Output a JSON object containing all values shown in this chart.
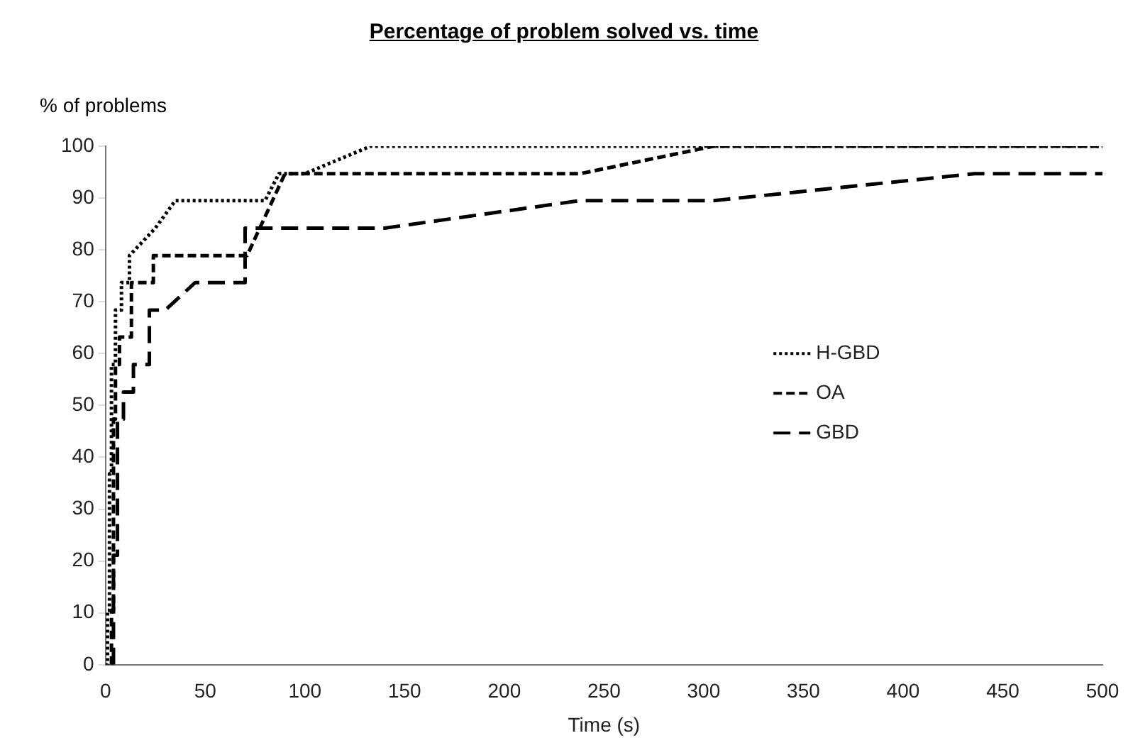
{
  "chart_data": {
    "type": "line",
    "title": "Percentage of problem solved vs. time",
    "xlabel": "Time (s)",
    "ylabel": "% of problems",
    "xlim": [
      0,
      500
    ],
    "xticks": [
      0,
      50,
      100,
      150,
      200,
      250,
      300,
      350,
      400,
      450,
      500
    ],
    "ylim": [
      0,
      100
    ],
    "yticks": [
      0,
      10,
      20,
      30,
      40,
      50,
      60,
      70,
      80,
      90,
      100
    ],
    "grid": false,
    "legend": "right",
    "marker": "none",
    "series": [
      {
        "name": "H-GBD",
        "color": "#000000",
        "line_style": "dotted",
        "x": [
          0,
          1,
          1,
          2,
          2,
          3,
          3,
          5,
          5,
          8,
          8,
          12,
          12,
          25,
          35,
          80,
          87,
          100,
          133,
          500
        ],
        "values": [
          0,
          0,
          10.5,
          10.5,
          36.8,
          36.8,
          57.9,
          57.9,
          68.4,
          68.4,
          73.7,
          73.7,
          78.9,
          84.2,
          89.5,
          89.5,
          94.7,
          94.7,
          100,
          100
        ]
      },
      {
        "name": "OA",
        "color": "#000000",
        "line_style": "dashed",
        "x": [
          3,
          3,
          4,
          4,
          5,
          5,
          7,
          7,
          13,
          13,
          24,
          24,
          71,
          90,
          238,
          305,
          500
        ],
        "values": [
          0,
          10.5,
          10.5,
          47.4,
          47.4,
          57.9,
          57.9,
          63.2,
          63.2,
          73.7,
          73.7,
          78.9,
          78.9,
          94.7,
          94.7,
          100,
          100
        ]
      },
      {
        "name": "GBD",
        "color": "#000000",
        "line_style": "long_dashed",
        "x": [
          4,
          4,
          6,
          6,
          9,
          9,
          14,
          14,
          22,
          22,
          30,
          45,
          70,
          70,
          140,
          238,
          305,
          436,
          500
        ],
        "values": [
          0,
          21.1,
          21.1,
          47.4,
          47.4,
          52.6,
          52.6,
          57.9,
          57.9,
          68.4,
          68.4,
          73.7,
          73.7,
          84.2,
          84.2,
          89.5,
          89.5,
          94.7,
          94.7
        ]
      }
    ]
  }
}
